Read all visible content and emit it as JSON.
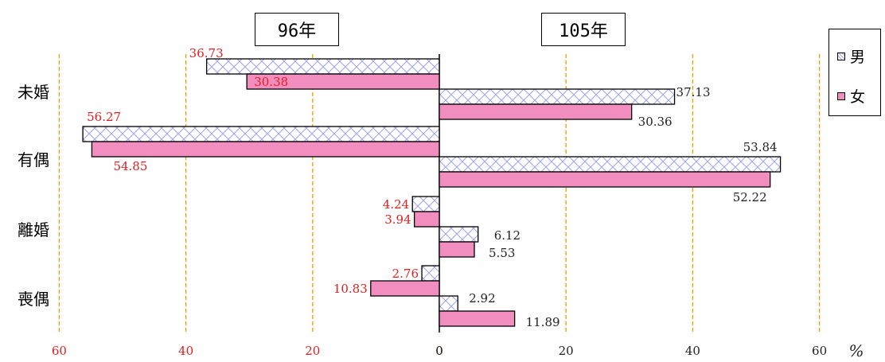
{
  "chart_data": {
    "type": "bar",
    "orientation": "horizontal",
    "layout": "back-to-back",
    "panels": [
      {
        "title": "96年",
        "direction": "left",
        "series": [
          {
            "name": "男",
            "values": [
              36.73,
              56.27,
              4.24,
              2.76
            ]
          },
          {
            "name": "女",
            "values": [
              30.38,
              54.85,
              3.94,
              10.83
            ]
          }
        ]
      },
      {
        "title": "105年",
        "direction": "right",
        "series": [
          {
            "name": "男",
            "values": [
              37.13,
              53.84,
              6.12,
              2.92
            ]
          },
          {
            "name": "女",
            "values": [
              30.36,
              52.22,
              5.53,
              11.89
            ]
          }
        ]
      }
    ],
    "categories": [
      "未婚",
      "有偶",
      "離婚",
      "喪偶"
    ],
    "xticks_left": [
      "60",
      "40",
      "20",
      "0"
    ],
    "xticks_right": [
      "0",
      "20",
      "40",
      "60"
    ],
    "x_unit": "%",
    "xlim": [
      0,
      60
    ],
    "grid": "vertical-dashed",
    "legend": {
      "placement": "top-right",
      "items": [
        "男",
        "女"
      ]
    }
  },
  "colors": {
    "male_fill": "#ffffff",
    "male_hatch": "#9fa6e6",
    "female_fill": "#f28dc0",
    "grid": "#e8a000",
    "left_label": "#e02020",
    "right_label": "#222222"
  }
}
